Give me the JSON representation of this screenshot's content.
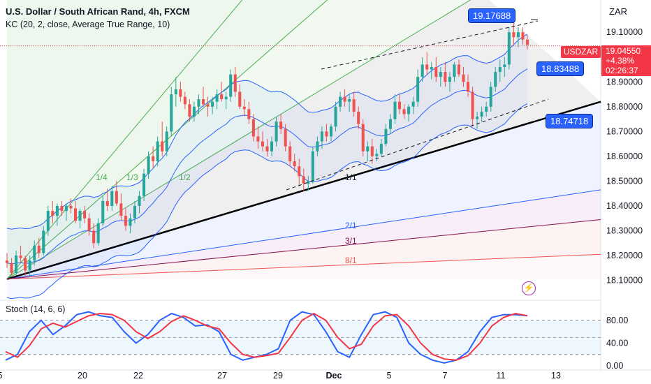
{
  "header": {
    "title": "U.S. Dollar / South African Rand, 4h, FXCM",
    "study": "KC (20, 2, close, Average True Range, 10)"
  },
  "currency": "ZAR",
  "stoch_label": "Stoch (14, 6, 6)",
  "price_tags": {
    "symbol": "USDZAR",
    "last": "19.04550",
    "change": "+4.38%",
    "countdown": "02:26:37"
  },
  "flags": [
    {
      "text": "19.17688",
      "price": 19.17688
    },
    {
      "text": "18.83488",
      "price": 18.83488
    },
    {
      "text": "18.74718",
      "price": 18.74718
    }
  ],
  "fan_labels": [
    "1/4",
    "1/3",
    "1/2",
    "1/1",
    "2/1",
    "3/1",
    "8/1"
  ],
  "colors": {
    "up": "#26a69a",
    "down": "#ef5350",
    "kc": "#2962ff",
    "stoch_k": "#2962ff",
    "stoch_d": "#f23645",
    "trend": "#000000"
  },
  "chart_data": [
    {
      "type": "candlestick",
      "title": "U.S. Dollar / South African Rand, 4h, FXCM",
      "x_ticks": [
        "5",
        "20",
        "22",
        "27",
        "29",
        "Dec",
        "5",
        "7",
        "11",
        "13"
      ],
      "y_ticks": [
        "19.10000",
        "18.90000",
        "18.80000",
        "18.70000",
        "18.60000",
        "18.50000",
        "18.40000",
        "18.30000",
        "18.20000",
        "18.10000"
      ],
      "ylim": [
        18.02,
        19.23
      ],
      "last_price": 19.0455,
      "candles": [
        [
          18.18,
          18.21,
          18.15,
          18.17
        ],
        [
          18.17,
          18.19,
          18.12,
          18.13
        ],
        [
          18.13,
          18.22,
          18.12,
          18.2
        ],
        [
          18.2,
          18.24,
          18.17,
          18.19
        ],
        [
          18.19,
          18.2,
          18.11,
          18.14
        ],
        [
          18.14,
          18.2,
          18.12,
          18.18
        ],
        [
          18.18,
          18.26,
          18.16,
          18.24
        ],
        [
          18.24,
          18.27,
          18.19,
          18.21
        ],
        [
          18.21,
          18.32,
          18.2,
          18.3
        ],
        [
          18.3,
          18.4,
          18.28,
          18.38
        ],
        [
          18.38,
          18.42,
          18.33,
          18.36
        ],
        [
          18.36,
          18.41,
          18.32,
          18.4
        ],
        [
          18.4,
          18.42,
          18.36,
          18.38
        ],
        [
          18.38,
          18.41,
          18.34,
          18.4
        ],
        [
          18.4,
          18.43,
          18.37,
          18.39
        ],
        [
          18.39,
          18.42,
          18.33,
          18.34
        ],
        [
          18.34,
          18.39,
          18.31,
          18.38
        ],
        [
          18.38,
          18.4,
          18.33,
          18.35
        ],
        [
          18.35,
          18.37,
          18.28,
          18.3
        ],
        [
          18.3,
          18.33,
          18.23,
          18.25
        ],
        [
          18.25,
          18.35,
          18.24,
          18.33
        ],
        [
          18.33,
          18.44,
          18.32,
          18.42
        ],
        [
          18.42,
          18.47,
          18.38,
          18.4
        ],
        [
          18.4,
          18.48,
          18.38,
          18.46
        ],
        [
          18.46,
          18.5,
          18.4,
          18.41
        ],
        [
          18.41,
          18.45,
          18.34,
          18.36
        ],
        [
          18.36,
          18.39,
          18.3,
          18.32
        ],
        [
          18.32,
          18.37,
          18.29,
          18.35
        ],
        [
          18.35,
          18.42,
          18.33,
          18.4
        ],
        [
          18.4,
          18.46,
          18.37,
          18.44
        ],
        [
          18.44,
          18.55,
          18.42,
          18.53
        ],
        [
          18.53,
          18.62,
          18.51,
          18.6
        ],
        [
          18.6,
          18.64,
          18.55,
          18.58
        ],
        [
          18.58,
          18.68,
          18.56,
          18.66
        ],
        [
          18.66,
          18.74,
          18.6,
          18.62
        ],
        [
          18.62,
          18.72,
          18.6,
          18.7
        ],
        [
          18.7,
          18.88,
          18.68,
          18.85
        ],
        [
          18.85,
          18.92,
          18.8,
          18.87
        ],
        [
          18.87,
          18.9,
          18.82,
          18.84
        ],
        [
          18.84,
          18.86,
          18.79,
          18.81
        ],
        [
          18.81,
          18.83,
          18.74,
          18.76
        ],
        [
          18.76,
          18.82,
          18.74,
          18.8
        ],
        [
          18.8,
          18.85,
          18.77,
          18.83
        ],
        [
          18.83,
          18.88,
          18.8,
          18.81
        ],
        [
          18.81,
          18.84,
          18.76,
          18.8
        ],
        [
          18.8,
          18.84,
          18.77,
          18.82
        ],
        [
          18.82,
          18.87,
          18.79,
          18.85
        ],
        [
          18.85,
          18.9,
          18.82,
          18.83
        ],
        [
          18.83,
          18.86,
          18.79,
          18.84
        ],
        [
          18.84,
          18.95,
          18.82,
          18.93
        ],
        [
          18.93,
          18.96,
          18.84,
          18.86
        ],
        [
          18.86,
          18.89,
          18.79,
          18.8
        ],
        [
          18.8,
          18.83,
          18.76,
          18.79
        ],
        [
          18.79,
          18.82,
          18.73,
          18.75
        ],
        [
          18.75,
          18.77,
          18.66,
          18.68
        ],
        [
          18.68,
          18.72,
          18.63,
          18.66
        ],
        [
          18.66,
          18.7,
          18.62,
          18.64
        ],
        [
          18.64,
          18.67,
          18.6,
          18.62
        ],
        [
          18.62,
          18.68,
          18.6,
          18.66
        ],
        [
          18.66,
          18.76,
          18.64,
          18.74
        ],
        [
          18.74,
          18.77,
          18.69,
          18.71
        ],
        [
          18.71,
          18.73,
          18.62,
          18.64
        ],
        [
          18.64,
          18.66,
          18.56,
          18.58
        ],
        [
          18.58,
          18.61,
          18.54,
          18.56
        ],
        [
          18.56,
          18.59,
          18.48,
          18.52
        ],
        [
          18.52,
          18.55,
          18.46,
          18.49
        ],
        [
          18.49,
          18.52,
          18.46,
          18.5
        ],
        [
          18.5,
          18.64,
          18.49,
          18.62
        ],
        [
          18.62,
          18.68,
          18.6,
          18.66
        ],
        [
          18.66,
          18.72,
          18.63,
          18.7
        ],
        [
          18.7,
          18.73,
          18.66,
          18.68
        ],
        [
          18.68,
          18.73,
          18.66,
          18.72
        ],
        [
          18.72,
          18.82,
          18.7,
          18.8
        ],
        [
          18.8,
          18.86,
          18.78,
          18.84
        ],
        [
          18.84,
          18.87,
          18.8,
          18.82
        ],
        [
          18.82,
          18.85,
          18.78,
          18.83
        ],
        [
          18.83,
          18.86,
          18.76,
          18.78
        ],
        [
          18.78,
          18.8,
          18.71,
          18.73
        ],
        [
          18.73,
          18.75,
          18.6,
          18.62
        ],
        [
          18.62,
          18.66,
          18.58,
          18.64
        ],
        [
          18.64,
          18.67,
          18.57,
          18.6
        ],
        [
          18.6,
          18.63,
          18.58,
          18.61
        ],
        [
          18.61,
          18.67,
          18.6,
          18.65
        ],
        [
          18.65,
          18.73,
          18.64,
          18.71
        ],
        [
          18.71,
          18.77,
          18.69,
          18.75
        ],
        [
          18.75,
          18.85,
          18.73,
          18.82
        ],
        [
          18.82,
          18.85,
          18.77,
          18.79
        ],
        [
          18.79,
          18.81,
          18.75,
          18.77
        ],
        [
          18.77,
          18.81,
          18.74,
          18.8
        ],
        [
          18.8,
          18.84,
          18.77,
          18.82
        ],
        [
          18.82,
          18.95,
          18.8,
          18.92
        ],
        [
          18.92,
          19.0,
          18.9,
          18.97
        ],
        [
          18.97,
          19.02,
          18.93,
          18.95
        ],
        [
          18.95,
          18.98,
          18.91,
          18.96
        ],
        [
          18.96,
          19.0,
          18.9,
          18.92
        ],
        [
          18.92,
          18.96,
          18.88,
          18.94
        ],
        [
          18.94,
          18.98,
          18.88,
          18.9
        ],
        [
          18.9,
          18.94,
          18.86,
          18.92
        ],
        [
          18.92,
          18.98,
          18.9,
          18.97
        ],
        [
          18.97,
          18.99,
          18.92,
          18.93
        ],
        [
          18.93,
          18.96,
          18.88,
          18.9
        ],
        [
          18.9,
          18.93,
          18.84,
          18.86
        ],
        [
          18.86,
          18.88,
          18.72,
          18.75
        ],
        [
          18.75,
          18.78,
          18.71,
          18.76
        ],
        [
          18.76,
          18.8,
          18.74,
          18.78
        ],
        [
          18.78,
          18.82,
          18.76,
          18.8
        ],
        [
          18.8,
          18.9,
          18.78,
          18.88
        ],
        [
          18.88,
          18.96,
          18.86,
          18.94
        ],
        [
          18.94,
          18.99,
          18.9,
          18.96
        ],
        [
          18.96,
          19.0,
          18.92,
          18.97
        ],
        [
          18.97,
          19.12,
          18.95,
          19.1
        ],
        [
          19.1,
          19.16,
          19.05,
          19.08
        ],
        [
          19.08,
          19.12,
          19.04,
          19.1
        ],
        [
          19.1,
          19.12,
          19.05,
          19.07
        ],
        [
          19.07,
          19.09,
          19.03,
          19.05
        ]
      ]
    },
    {
      "type": "line",
      "title": "Stoch (14, 6, 6)",
      "y_ticks": [
        "80.00",
        "40.00",
        "0.00"
      ],
      "ylim": [
        -5,
        108
      ],
      "bands": [
        20,
        50,
        80
      ],
      "series": [
        {
          "name": "%K",
          "values": [
            10,
            20,
            60,
            80,
            55,
            70,
            90,
            95,
            88,
            85,
            60,
            40,
            55,
            80,
            92,
            85,
            70,
            72,
            60,
            20,
            10,
            15,
            20,
            30,
            80,
            95,
            90,
            60,
            25,
            15,
            55,
            90,
            95,
            85,
            40,
            20,
            10,
            5,
            10,
            25,
            60,
            85,
            90,
            90,
            88
          ]
        },
        {
          "name": "%D",
          "values": [
            25,
            15,
            35,
            65,
            75,
            68,
            78,
            88,
            92,
            90,
            80,
            60,
            48,
            60,
            78,
            88,
            80,
            70,
            65,
            40,
            20,
            15,
            18,
            22,
            50,
            80,
            92,
            80,
            50,
            30,
            38,
            70,
            88,
            90,
            70,
            40,
            20,
            12,
            10,
            18,
            40,
            70,
            85,
            92,
            88
          ]
        }
      ]
    }
  ]
}
